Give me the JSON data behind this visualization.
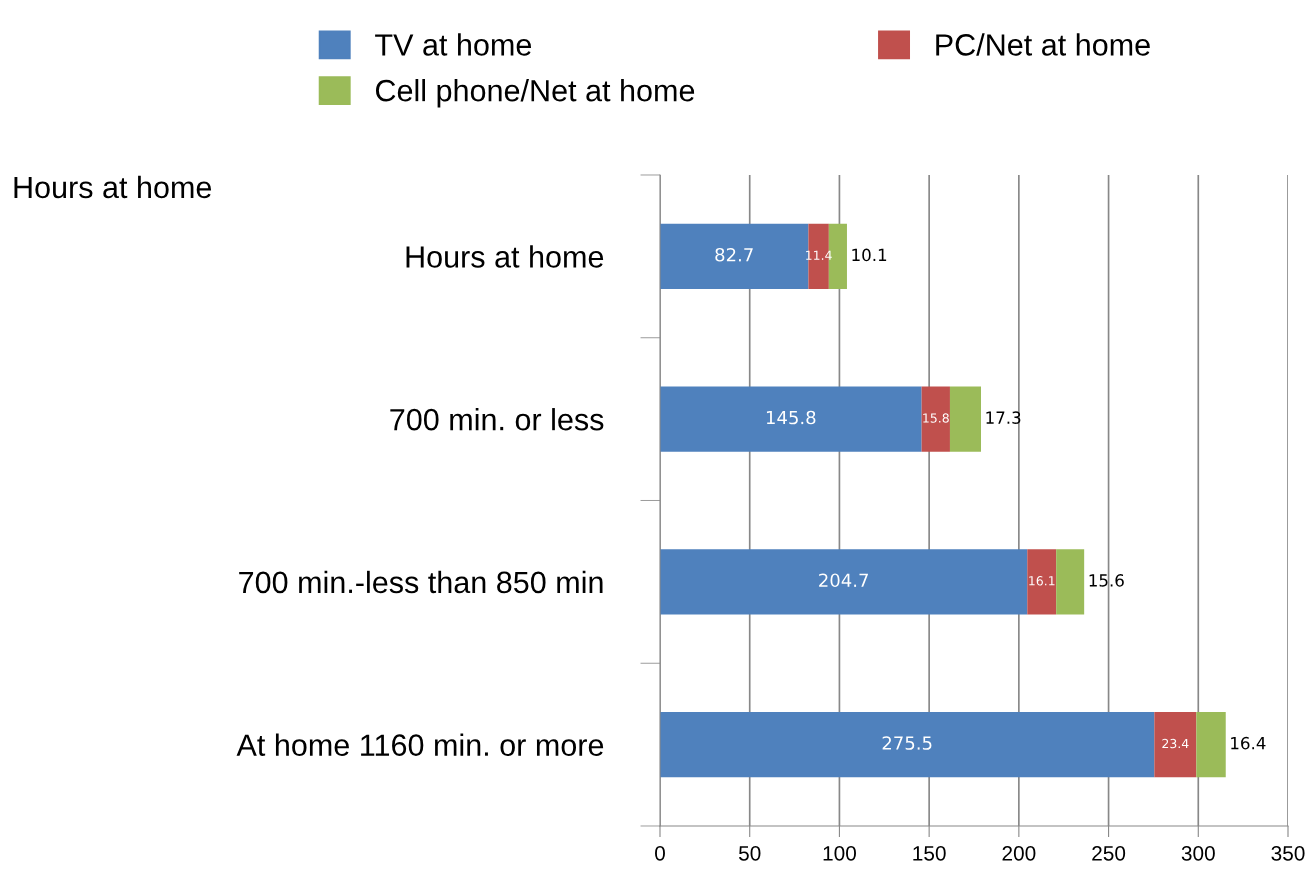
{
  "chart_data": {
    "type": "bar",
    "orientation": "horizontal",
    "stacked": true,
    "ylabel": "Hours at home",
    "categories": [
      "Hours at home",
      "700 min. or less",
      "700 min.-less than 850 min",
      "At home 1160 min. or more"
    ],
    "series": [
      {
        "name": "TV at home",
        "color": "#4f81bd",
        "values": [
          82.7,
          145.8,
          204.7,
          275.5
        ]
      },
      {
        "name": "PC/Net at home",
        "color": "#c0504d",
        "values": [
          11.4,
          15.8,
          16.1,
          23.4
        ]
      },
      {
        "name": "Cell phone/Net at home",
        "color": "#9bbb59",
        "values": [
          10.1,
          17.3,
          15.6,
          16.4
        ]
      }
    ],
    "value_labels": [
      [
        "82.7",
        "145.8",
        "204.7",
        "275.5"
      ],
      [
        "11.4",
        "15.8",
        "16.1",
        "23.4"
      ],
      [
        "10.1",
        "17.3",
        "15.6",
        "16.4"
      ]
    ],
    "xlim": [
      0,
      350
    ],
    "xticks": [
      0,
      50,
      100,
      150,
      200,
      250,
      300,
      350
    ],
    "grid": "x",
    "legend": "top"
  }
}
